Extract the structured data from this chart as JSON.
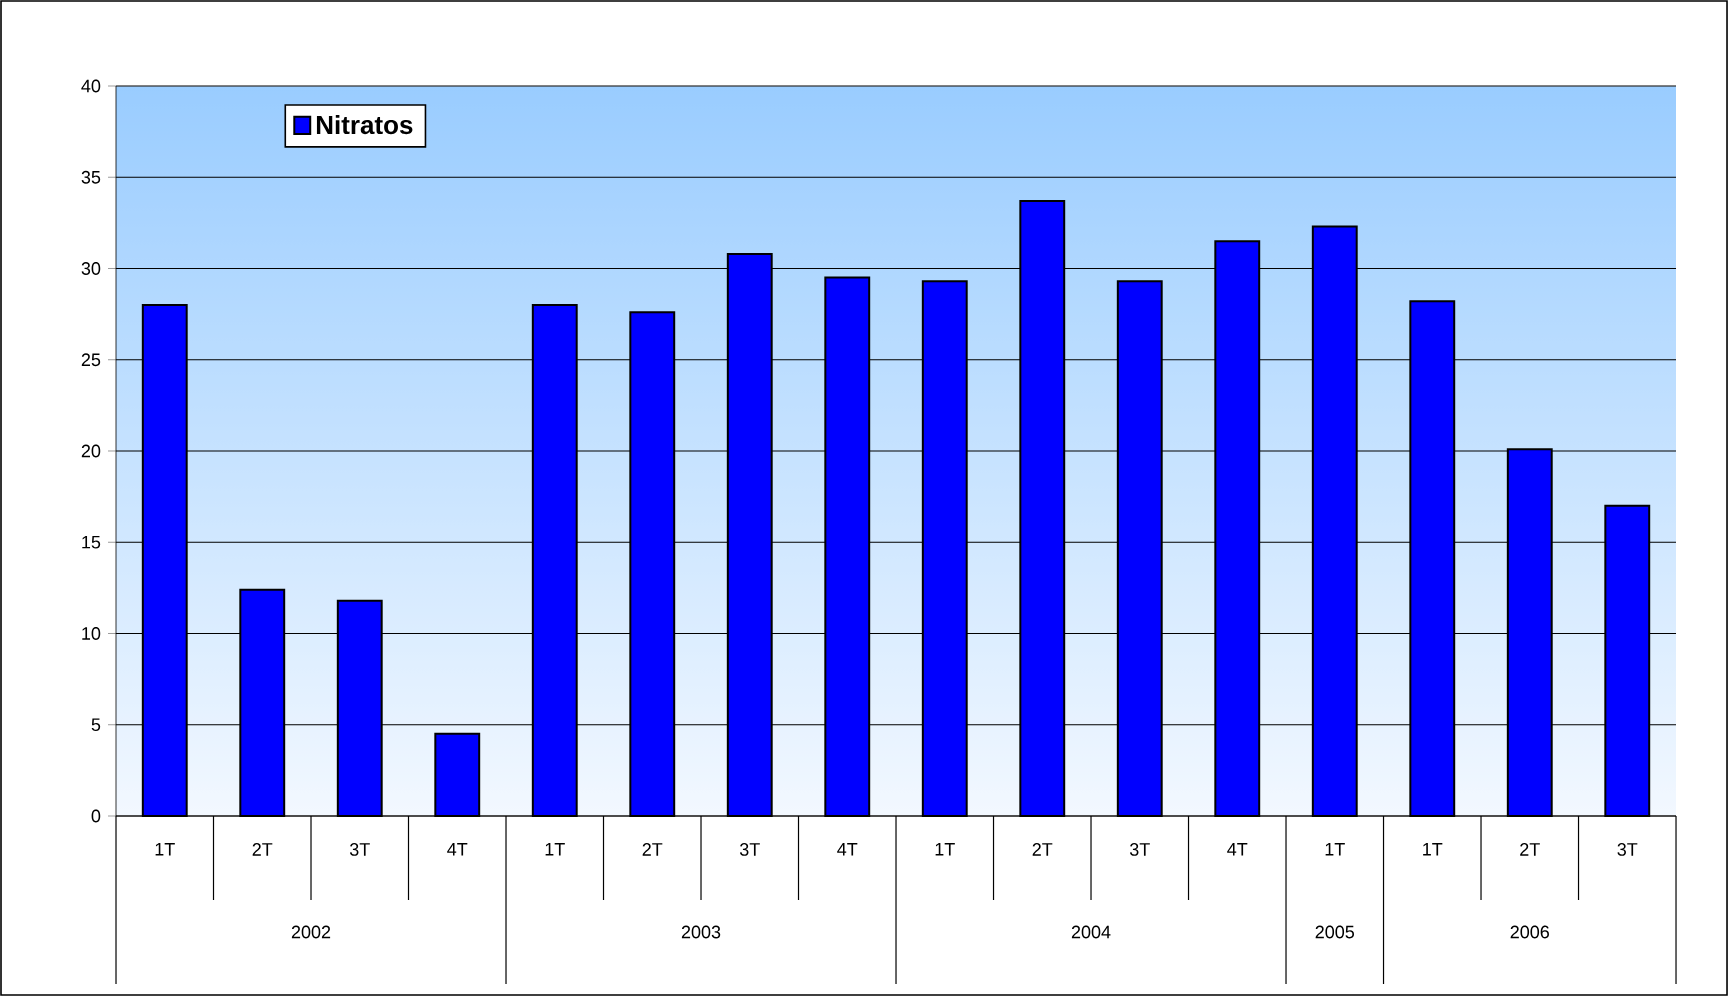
{
  "chart_data": {
    "type": "bar",
    "categories": [
      "1T",
      "2T",
      "3T",
      "4T",
      "1T",
      "2T",
      "3T",
      "4T",
      "1T",
      "2T",
      "3T",
      "4T",
      "1T",
      "1T",
      "2T",
      "3T"
    ],
    "series": [
      {
        "name": "Nitratos",
        "color": "#0000ff",
        "values": [
          28,
          12.4,
          11.8,
          4.5,
          28,
          27.6,
          30.8,
          29.5,
          29.3,
          33.7,
          29.3,
          31.5,
          32.3,
          28.2,
          20.1,
          17
        ]
      }
    ],
    "annotations": [
      "2002",
      "2003",
      "2004",
      "2005",
      "2006"
    ],
    "ylim": [
      0,
      40
    ],
    "yticks": [
      0,
      5,
      10,
      15,
      20,
      25,
      30,
      35,
      40
    ],
    "grid": "y",
    "legend": "top left"
  }
}
